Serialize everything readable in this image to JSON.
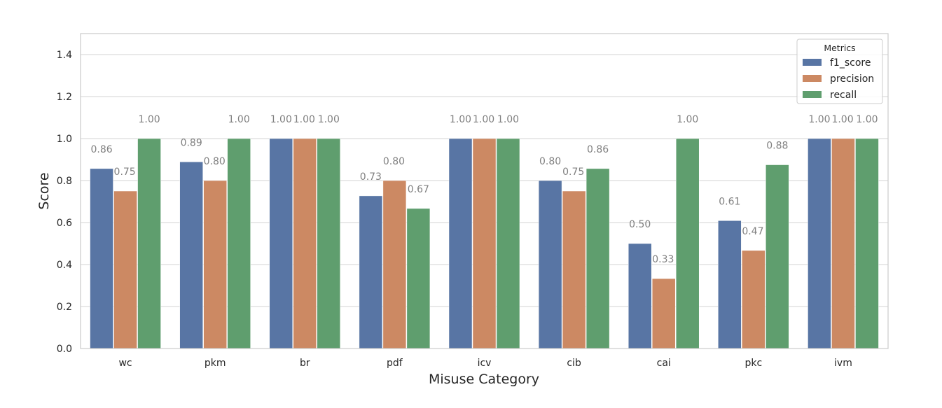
{
  "chart_data": {
    "type": "bar",
    "xlabel": "Misuse Category",
    "ylabel": "Score",
    "ylim": [
      0,
      1.5
    ],
    "yticks": [
      0.0,
      0.2,
      0.4,
      0.6,
      0.8,
      1.0,
      1.2,
      1.4
    ],
    "ytick_labels": [
      "0.0",
      "0.2",
      "0.4",
      "0.6",
      "0.8",
      "1.0",
      "1.2",
      "1.4"
    ],
    "categories": [
      "wc",
      "pkm",
      "br",
      "pdf",
      "icv",
      "cib",
      "cai",
      "pkc",
      "ivm"
    ],
    "grid": "horizontal",
    "legend": {
      "title": "Metrics",
      "placement": "top-right"
    },
    "series": [
      {
        "name": "f1_score",
        "color": "#5875a4",
        "values": [
          0.857,
          0.889,
          1.0,
          0.727,
          1.0,
          0.8,
          0.5,
          0.609,
          1.0
        ],
        "labels": [
          "0.86",
          "0.89",
          "1.00",
          "0.73",
          "1.00",
          "0.80",
          "0.50",
          "0.61",
          "1.00"
        ]
      },
      {
        "name": "precision",
        "color": "#cc8963",
        "values": [
          0.75,
          0.8,
          1.0,
          0.8,
          1.0,
          0.75,
          0.333,
          0.467,
          1.0
        ],
        "labels": [
          "0.75",
          "0.80",
          "1.00",
          "0.80",
          "1.00",
          "0.75",
          "0.33",
          "0.47",
          "1.00"
        ]
      },
      {
        "name": "recall",
        "color": "#5f9e6e",
        "values": [
          1.0,
          1.0,
          1.0,
          0.667,
          1.0,
          0.857,
          1.0,
          0.875,
          1.0
        ],
        "labels": [
          "1.00",
          "1.00",
          "1.00",
          "0.67",
          "1.00",
          "0.86",
          "1.00",
          "0.88",
          "1.00"
        ]
      }
    ]
  }
}
